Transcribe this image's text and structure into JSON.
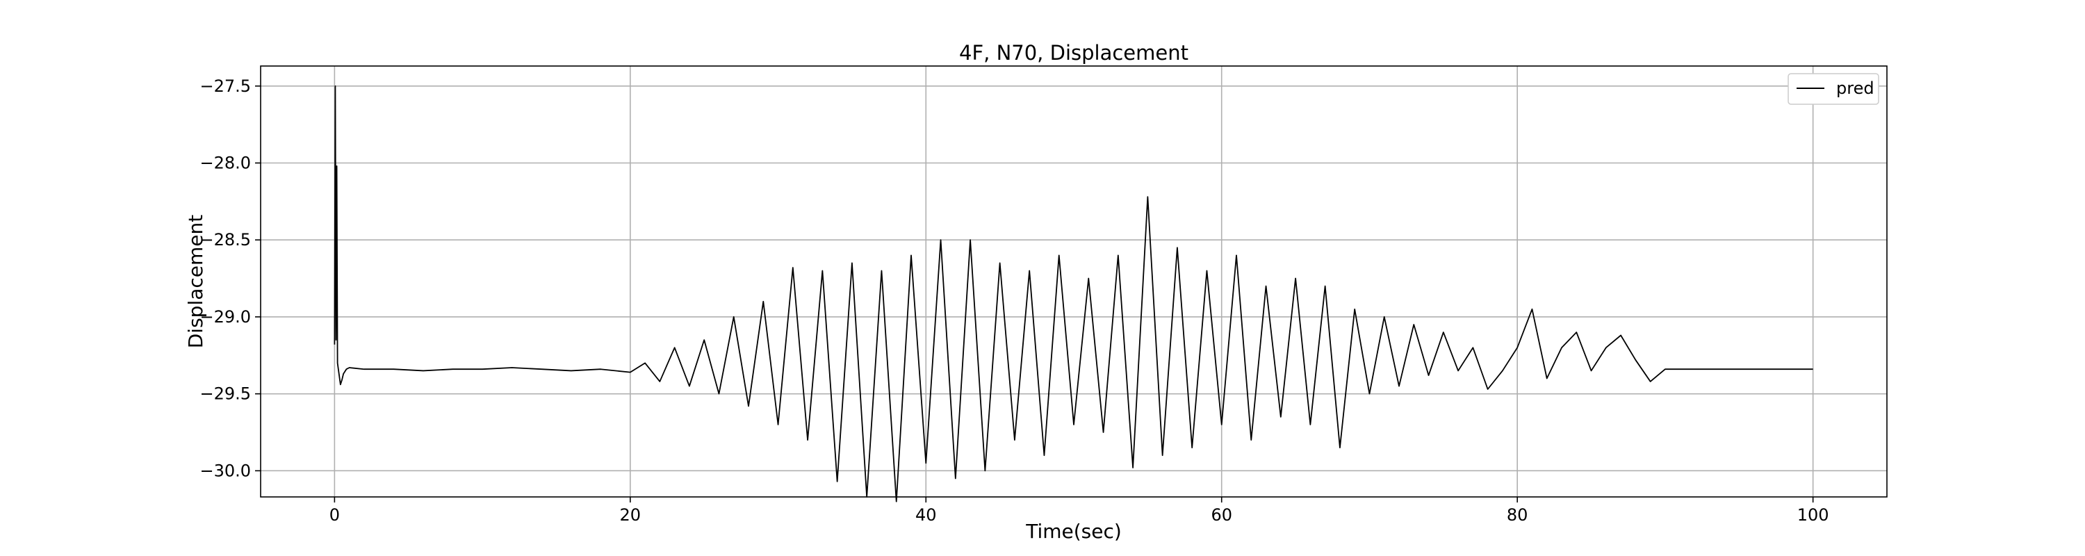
{
  "chart_data": {
    "type": "line",
    "title": "4F, N70, Displacement",
    "xlabel": "Time(sec)",
    "ylabel": "Displacement",
    "xlim": [
      -5,
      105
    ],
    "ylim": [
      -30.17,
      -27.37
    ],
    "xticks": [
      0,
      20,
      40,
      60,
      80,
      100
    ],
    "yticks": [
      -27.5,
      -28.0,
      -28.5,
      -29.0,
      -29.5,
      -30.0
    ],
    "xtick_labels": [
      "0",
      "20",
      "40",
      "60",
      "80",
      "100"
    ],
    "ytick_labels": [
      "−27.5",
      "−28.0",
      "−28.5",
      "−29.0",
      "−29.5",
      "−30.0"
    ],
    "grid": true,
    "legend": {
      "position": "top-right",
      "entries": [
        "pred"
      ]
    },
    "series": [
      {
        "name": "pred",
        "color": "#000000",
        "x": [
          0,
          0.05,
          0.1,
          0.15,
          0.2,
          0.3,
          0.4,
          0.5,
          0.6,
          0.8,
          1.0,
          2,
          4,
          6,
          8,
          10,
          12,
          14,
          16,
          18,
          20,
          21,
          22,
          23,
          24,
          25,
          26,
          27,
          28,
          29,
          30,
          31,
          32,
          33,
          34,
          35,
          36,
          37,
          38,
          39,
          40,
          41,
          42,
          43,
          44,
          45,
          46,
          47,
          48,
          49,
          50,
          51,
          52,
          53,
          54,
          55,
          56,
          57,
          58,
          59,
          60,
          61,
          62,
          63,
          64,
          65,
          66,
          67,
          68,
          69,
          70,
          71,
          72,
          73,
          74,
          75,
          76,
          77,
          78,
          79,
          80,
          81,
          82,
          83,
          84,
          85,
          86,
          87,
          88,
          89,
          90,
          91,
          92,
          95,
          100
        ],
        "y": [
          -29.18,
          -27.5,
          -29.15,
          -28.02,
          -29.3,
          -29.37,
          -29.44,
          -29.41,
          -29.37,
          -29.34,
          -29.33,
          -29.34,
          -29.34,
          -29.35,
          -29.34,
          -29.34,
          -29.33,
          -29.34,
          -29.35,
          -29.34,
          -29.36,
          -29.3,
          -29.42,
          -29.2,
          -29.45,
          -29.15,
          -29.5,
          -29.0,
          -29.58,
          -28.9,
          -29.7,
          -28.68,
          -29.8,
          -28.7,
          -30.07,
          -28.65,
          -30.17,
          -28.7,
          -30.2,
          -28.6,
          -29.95,
          -28.5,
          -30.05,
          -28.5,
          -30.0,
          -28.65,
          -29.8,
          -28.7,
          -29.9,
          -28.6,
          -29.7,
          -28.75,
          -29.75,
          -28.6,
          -29.98,
          -28.22,
          -29.9,
          -28.55,
          -29.85,
          -28.7,
          -29.7,
          -28.6,
          -29.8,
          -28.8,
          -29.65,
          -28.75,
          -29.7,
          -28.8,
          -29.85,
          -28.95,
          -29.5,
          -29.0,
          -29.45,
          -29.05,
          -29.38,
          -29.1,
          -29.35,
          -29.2,
          -29.47,
          -29.35,
          -29.2,
          -28.95,
          -29.4,
          -29.2,
          -29.1,
          -29.35,
          -29.2,
          -29.12,
          -29.28,
          -29.42,
          -29.34,
          -29.34,
          -29.34,
          -29.34,
          -29.34
        ]
      }
    ]
  }
}
